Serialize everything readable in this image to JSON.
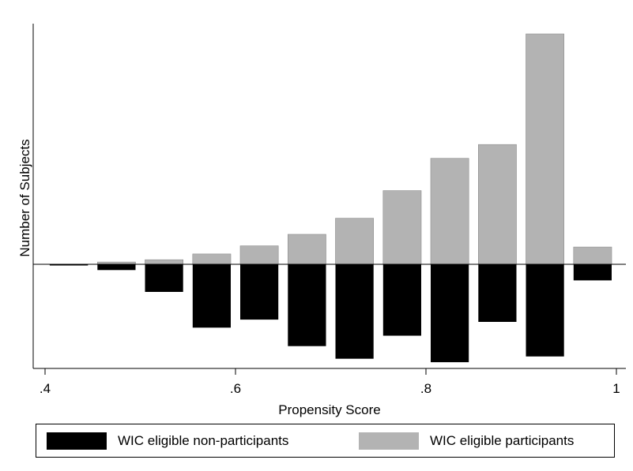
{
  "chart_data": {
    "type": "bar",
    "orientation": "back-to-back histogram",
    "xlabel": "Propensity Score",
    "ylabel": "Number of Subjects",
    "xlim": [
      0.4,
      1.0
    ],
    "x_ticks": [
      {
        "value": 0.4,
        "label": ".4"
      },
      {
        "value": 0.6,
        "label": ".6"
      },
      {
        "value": 0.8,
        "label": ".8"
      },
      {
        "value": 1.0,
        "label": "1"
      }
    ],
    "bin_width": 0.05,
    "bin_centers": [
      0.425,
      0.475,
      0.525,
      0.575,
      0.625,
      0.675,
      0.725,
      0.775,
      0.825,
      0.875,
      0.925,
      0.975
    ],
    "y_ticks_shown": false,
    "series": [
      {
        "name": "WIC eligible participants",
        "color": "#b3b3b3",
        "direction": "up",
        "values": [
          0,
          1.0,
          2.0,
          4.5,
          8.0,
          13.0,
          20.0,
          32.0,
          46.0,
          52.0,
          100.0,
          7.5
        ]
      },
      {
        "name": "WIC eligible non-participants",
        "color": "#000000",
        "direction": "down",
        "values": [
          0.5,
          2.5,
          12.0,
          27.5,
          24.0,
          35.5,
          41.0,
          31.0,
          42.5,
          25.0,
          40.0,
          7.0
        ]
      }
    ],
    "legend": {
      "position": "bottom",
      "entries": [
        {
          "label": "WIC eligible non-participants",
          "color": "#000000"
        },
        {
          "label": "WIC eligible participants",
          "color": "#b3b3b3"
        }
      ]
    }
  }
}
